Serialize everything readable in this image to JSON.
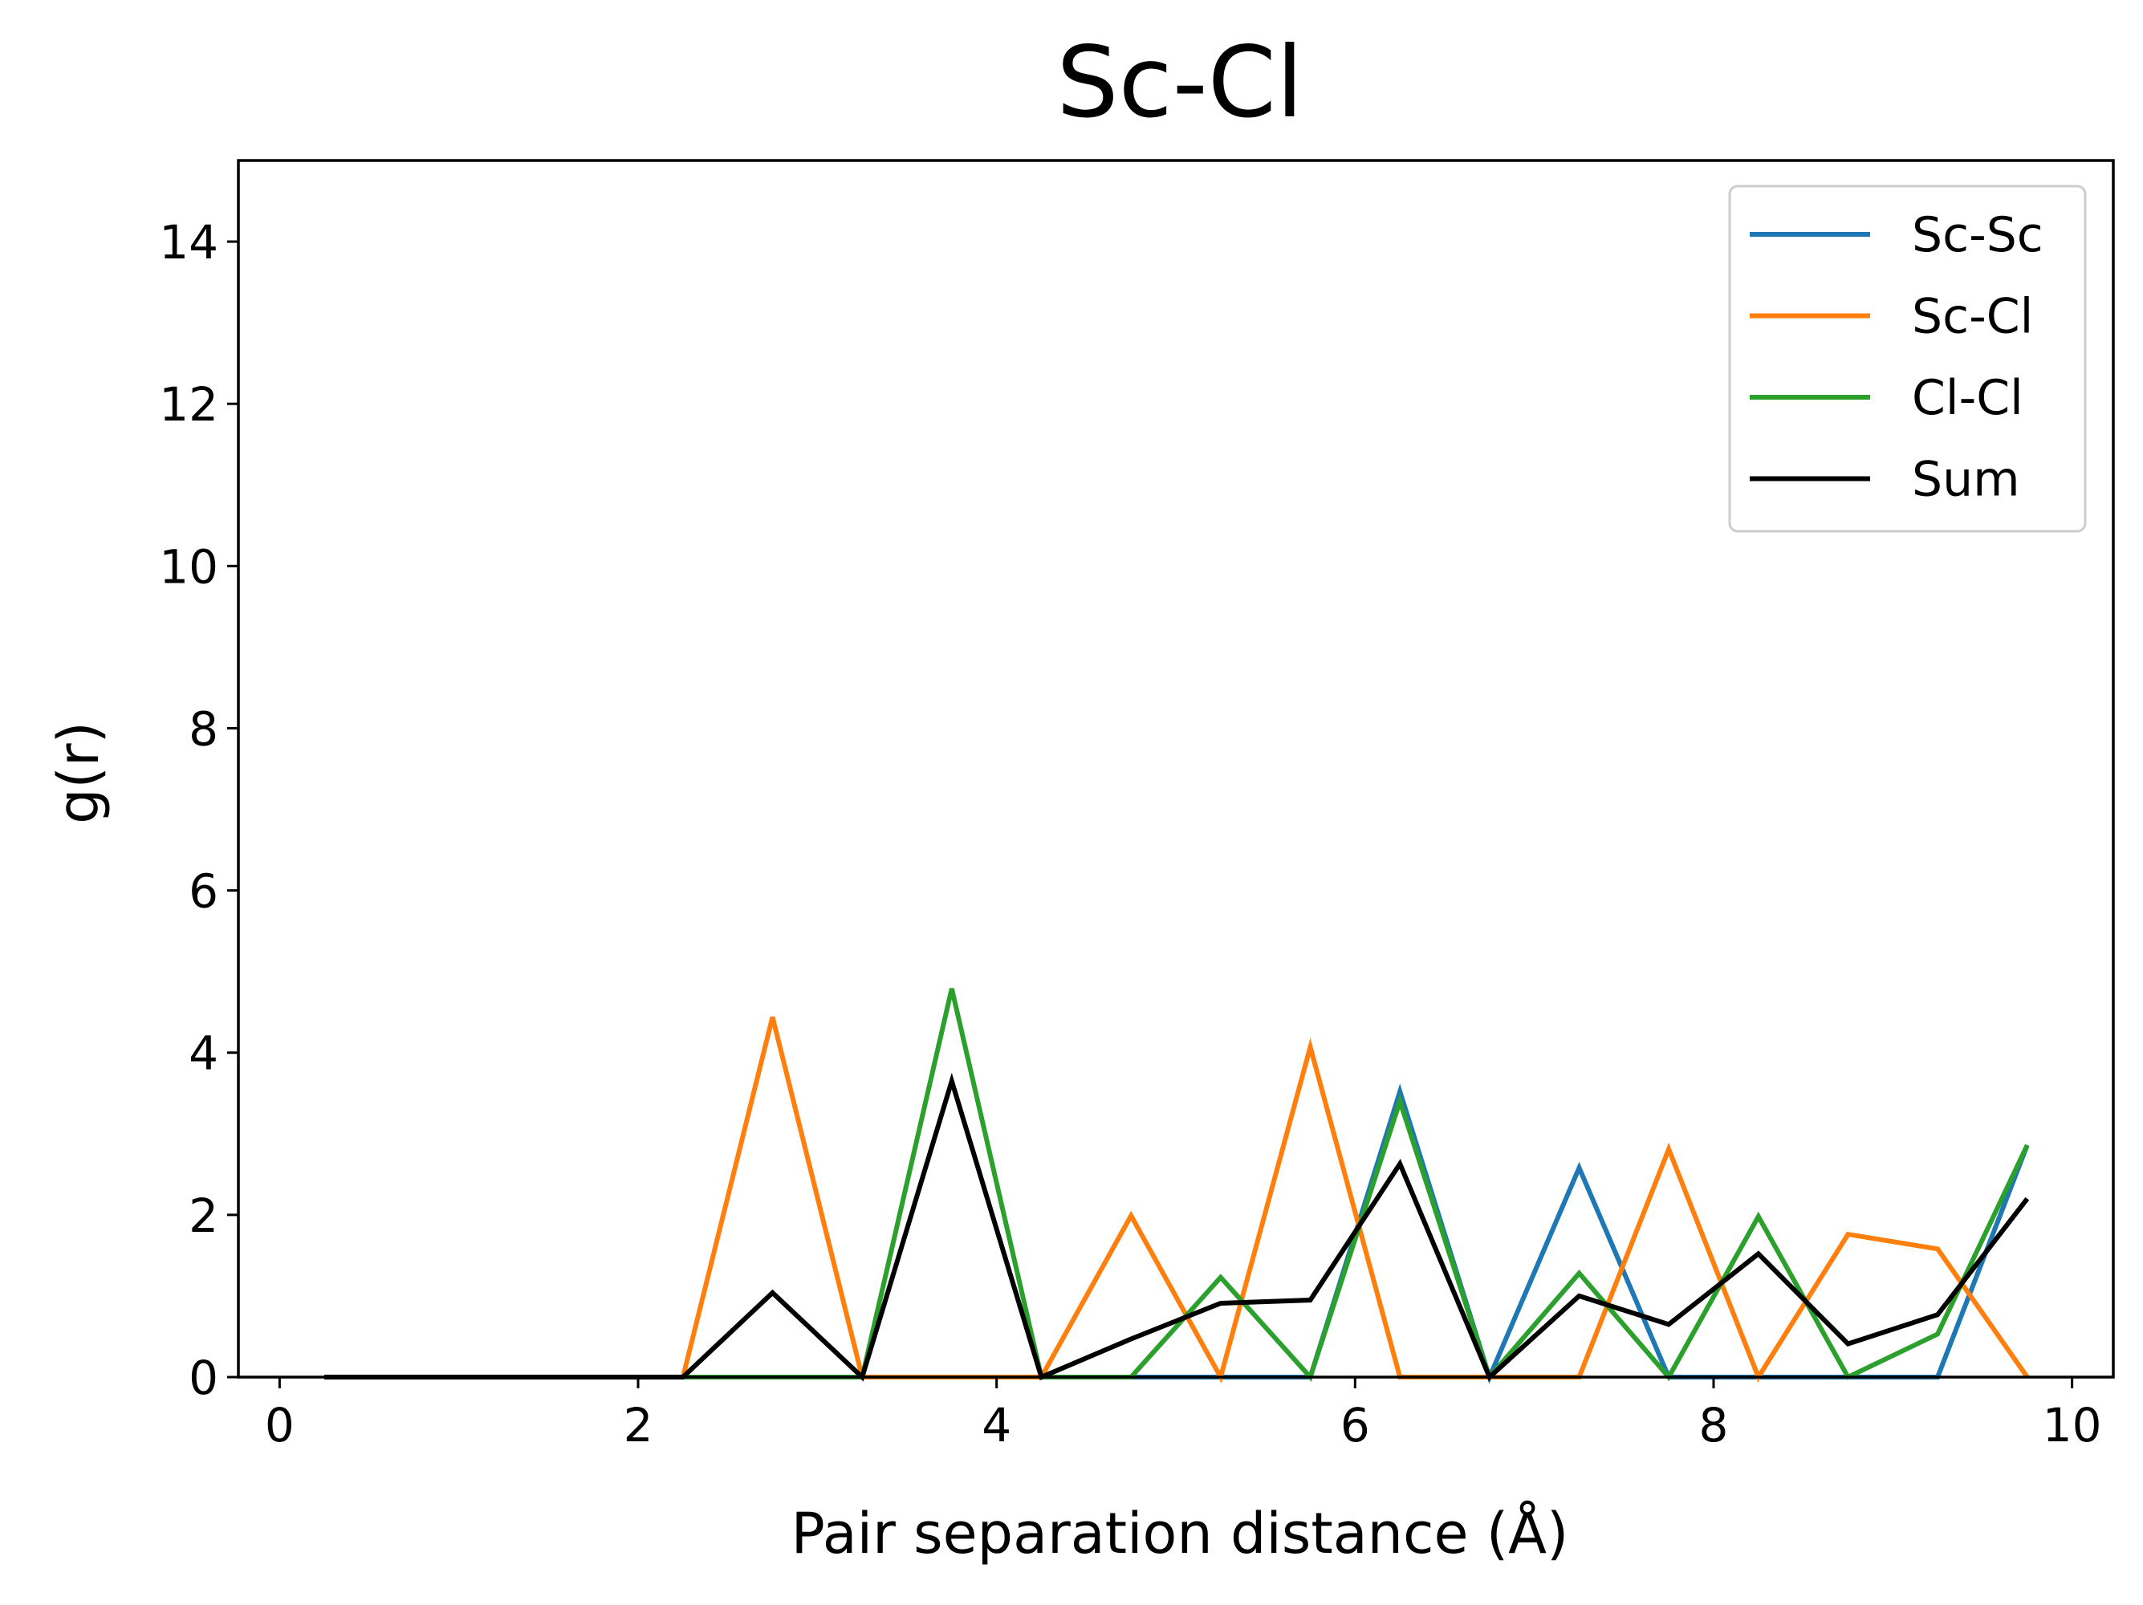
{
  "chart_data": {
    "type": "line",
    "title": "Sc-Cl",
    "xlabel": "Pair separation distance (Å)",
    "ylabel": "g(r)",
    "xlim": [
      -0.23,
      10.23
    ],
    "ylim": [
      0,
      15
    ],
    "xticks": [
      "0",
      "2",
      "4",
      "6",
      "8",
      "10"
    ],
    "yticks": [
      "0",
      "2",
      "4",
      "6",
      "8",
      "10",
      "12",
      "14"
    ],
    "grid": false,
    "legend_position": "top-right",
    "x": [
      0.25,
      0.75,
      1.25,
      1.75,
      2.25,
      2.75,
      3.25,
      3.75,
      4.25,
      4.75,
      5.25,
      5.75,
      6.25,
      6.75,
      7.25,
      7.75,
      8.25,
      8.75,
      9.25,
      9.75
    ],
    "series": [
      {
        "name": "Sc-Sc",
        "color": "#1f77b4",
        "values": [
          0,
          0,
          0,
          0,
          0,
          0,
          0,
          0,
          0,
          0,
          0,
          0,
          3.52,
          0,
          2.58,
          0,
          0,
          0,
          0,
          2.86
        ]
      },
      {
        "name": "Sc-Cl",
        "color": "#ff7f0e",
        "values": [
          0,
          0,
          0,
          0,
          0,
          4.44,
          0,
          0,
          0,
          1.99,
          0,
          4.07,
          0,
          0,
          0,
          2.81,
          0,
          1.76,
          1.58,
          0
        ]
      },
      {
        "name": "Cl-Cl",
        "color": "#2ca02c",
        "values": [
          0,
          0,
          0,
          0,
          0,
          0,
          0,
          4.79,
          0,
          0,
          1.23,
          0,
          3.4,
          0,
          1.28,
          0,
          1.98,
          0,
          0.53,
          2.86
        ]
      },
      {
        "name": "Sum",
        "color": "#000000",
        "values": [
          0,
          0,
          0,
          0,
          0,
          1.04,
          0,
          3.65,
          0,
          0.47,
          0.91,
          0.95,
          2.63,
          0,
          1.0,
          0.65,
          1.52,
          0.41,
          0.77,
          2.2
        ]
      }
    ]
  }
}
